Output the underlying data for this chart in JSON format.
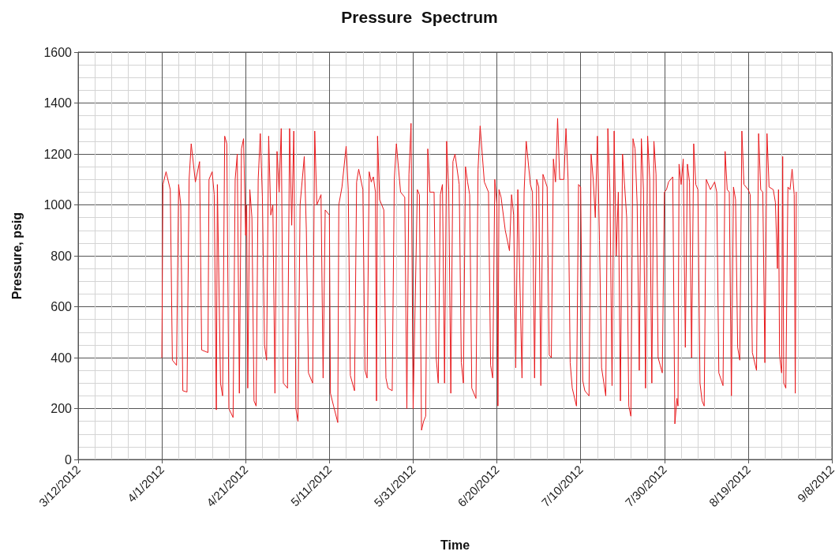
{
  "chart_data": {
    "type": "line",
    "title": "Pressure  Spectrum",
    "xlabel": "Time",
    "ylabel": "Pressure, psig",
    "xlim": [
      "2012-03-12",
      "2012-09-08"
    ],
    "xticks": [
      {
        "value": "2012-03-12",
        "label": "3/12/2012"
      },
      {
        "value": "2012-04-01",
        "label": "4/1/2012"
      },
      {
        "value": "2012-04-21",
        "label": "4/21/2012"
      },
      {
        "value": "2012-05-11",
        "label": "5/11/2012"
      },
      {
        "value": "2012-05-31",
        "label": "5/31/2012"
      },
      {
        "value": "2012-06-20",
        "label": "6/20/2012"
      },
      {
        "value": "2012-07-10",
        "label": "7/10/2012"
      },
      {
        "value": "2012-07-30",
        "label": "7/30/2012"
      },
      {
        "value": "2012-08-19",
        "label": "8/19/2012"
      },
      {
        "value": "2012-09-08",
        "label": "9/8/2012"
      }
    ],
    "ylim": [
      0,
      1600
    ],
    "yticks": [
      0,
      200,
      400,
      600,
      800,
      1000,
      1200,
      1400,
      1600
    ],
    "grid": true,
    "marker": "none",
    "line_style": "solid",
    "series": [
      {
        "color": "#e8191c",
        "x": [
          "2012-04-01T00:00",
          "2012-04-01T06:00",
          "2012-04-02",
          "2012-04-03",
          "2012-04-03T12:00",
          "2012-04-04T12:00",
          "2012-04-05",
          "2012-04-05T12:00",
          "2012-04-06",
          "2012-04-07",
          "2012-04-07T12:00",
          "2012-04-08",
          "2012-04-09",
          "2012-04-10",
          "2012-04-10T12:00",
          "2012-04-12",
          "2012-04-12T06:00",
          "2012-04-13",
          "2012-04-13T12:00",
          "2012-04-14",
          "2012-04-14T06:00",
          "2012-04-15",
          "2012-04-15T12:00",
          "2012-04-16",
          "2012-04-16T12:00",
          "2012-04-17",
          "2012-04-18",
          "2012-04-18T12:00",
          "2012-04-19",
          "2012-04-19T12:00",
          "2012-04-20",
          "2012-04-20T12:00",
          "2012-04-21",
          "2012-04-21T06:00",
          "2012-04-21T12:00",
          "2012-04-22",
          "2012-04-22T12:00",
          "2012-04-23",
          "2012-04-23T12:00",
          "2012-04-24",
          "2012-04-24T12:00",
          "2012-04-25",
          "2012-04-25T12:00",
          "2012-04-26",
          "2012-04-26T12:00",
          "2012-04-27",
          "2012-04-27T12:00",
          "2012-04-28",
          "2012-04-28T12:00",
          "2012-04-29",
          "2012-04-29T12:00",
          "2012-04-30",
          "2012-05-01",
          "2012-05-01T12:00",
          "2012-05-02",
          "2012-05-02T12:00",
          "2012-05-03",
          "2012-05-03T12:00",
          "2012-05-04",
          "2012-05-05",
          "2012-05-05T12:00",
          "2012-05-06",
          "2012-05-07",
          "2012-05-07T12:00",
          "2012-05-08",
          "2012-05-09",
          "2012-05-09T12:00",
          "2012-05-10",
          "2012-05-11",
          "2012-05-11T06:00",
          "2012-05-12",
          "2012-05-13",
          "2012-05-13T06:00",
          "2012-05-14",
          "2012-05-15",
          "2012-05-15T12:00",
          "2012-05-16",
          "2012-05-17",
          "2012-05-17T12:00",
          "2012-05-18",
          "2012-05-19",
          "2012-05-19T12:00",
          "2012-05-20",
          "2012-05-20T12:00",
          "2012-05-21",
          "2012-05-21T12:00",
          "2012-05-22",
          "2012-05-22T06:00",
          "2012-05-22T12:00",
          "2012-05-23",
          "2012-05-24",
          "2012-05-24T12:00",
          "2012-05-25",
          "2012-05-26",
          "2012-05-26T12:00",
          "2012-05-27",
          "2012-05-28",
          "2012-05-29",
          "2012-05-29T12:00",
          "2012-05-30",
          "2012-05-30T12:00",
          "2012-05-31",
          "2012-06-01",
          "2012-06-01T12:00",
          "2012-06-02",
          "2012-06-02T12:00",
          "2012-06-03",
          "2012-06-03T12:00",
          "2012-06-04",
          "2012-06-05",
          "2012-06-05T12:00",
          "2012-06-06",
          "2012-06-06T12:00",
          "2012-06-07",
          "2012-06-07T12:00",
          "2012-06-08",
          "2012-06-08T12:00",
          "2012-06-09",
          "2012-06-09T12:00",
          "2012-06-10",
          "2012-06-11",
          "2012-06-11T12:00",
          "2012-06-12",
          "2012-06-12T12:00",
          "2012-06-13",
          "2012-06-13T12:00",
          "2012-06-14",
          "2012-06-15",
          "2012-06-15T12:00",
          "2012-06-16",
          "2012-06-17",
          "2012-06-18",
          "2012-06-18T12:00",
          "2012-06-19",
          "2012-06-19T12:00",
          "2012-06-20",
          "2012-06-20T06:00",
          "2012-06-20T12:00",
          "2012-06-21",
          "2012-06-22",
          "2012-06-23",
          "2012-06-23T12:00",
          "2012-06-24",
          "2012-06-24T12:00",
          "2012-06-25",
          "2012-06-26",
          "2012-06-26T12:00",
          "2012-06-27",
          "2012-06-28",
          "2012-06-28T12:00",
          "2012-06-29",
          "2012-06-29T12:00",
          "2012-06-30",
          "2012-06-30T12:00",
          "2012-07-01",
          "2012-07-02",
          "2012-07-02T12:00",
          "2012-07-03",
          "2012-07-03T12:00",
          "2012-07-04",
          "2012-07-04T12:00",
          "2012-07-05",
          "2012-07-06",
          "2012-07-06T12:00",
          "2012-07-07",
          "2012-07-07T12:00",
          "2012-07-08",
          "2012-07-09",
          "2012-07-09T12:00",
          "2012-07-10",
          "2012-07-10T12:00",
          "2012-07-11",
          "2012-07-12",
          "2012-07-12T12:00",
          "2012-07-13",
          "2012-07-13T12:00",
          "2012-07-14",
          "2012-07-14T12:00",
          "2012-07-15",
          "2012-07-16",
          "2012-07-16T12:00",
          "2012-07-17",
          "2012-07-17T12:00",
          "2012-07-18",
          "2012-07-18T12:00",
          "2012-07-19",
          "2012-07-19T12:00",
          "2012-07-20",
          "2012-07-21",
          "2012-07-21T12:00",
          "2012-07-22",
          "2012-07-22T12:00",
          "2012-07-23",
          "2012-07-23T12:00",
          "2012-07-24",
          "2012-07-24T12:00",
          "2012-07-25",
          "2012-07-25T12:00",
          "2012-07-26",
          "2012-07-26T12:00",
          "2012-07-27",
          "2012-07-27T12:00",
          "2012-07-28",
          "2012-07-28T12:00",
          "2012-07-29",
          "2012-07-29T12:00",
          "2012-07-30",
          "2012-07-30T12:00",
          "2012-07-31",
          "2012-08-01",
          "2012-08-01T12:00",
          "2012-08-02",
          "2012-08-02T06:00",
          "2012-08-02T12:00",
          "2012-08-03",
          "2012-08-03T12:00",
          "2012-08-04",
          "2012-08-04T12:00",
          "2012-08-05",
          "2012-08-05T12:00",
          "2012-08-06",
          "2012-08-06T12:00",
          "2012-08-07",
          "2012-08-07T12:00",
          "2012-08-08",
          "2012-08-08T12:00",
          "2012-08-09",
          "2012-08-10",
          "2012-08-11",
          "2012-08-11T12:00",
          "2012-08-12",
          "2012-08-13",
          "2012-08-13T12:00",
          "2012-08-14",
          "2012-08-14T12:00",
          "2012-08-15",
          "2012-08-15T12:00",
          "2012-08-16",
          "2012-08-16T12:00",
          "2012-08-17",
          "2012-08-17T12:00",
          "2012-08-18",
          "2012-08-19",
          "2012-08-19T12:00",
          "2012-08-20",
          "2012-08-21",
          "2012-08-21T12:00",
          "2012-08-22",
          "2012-08-22T12:00",
          "2012-08-23",
          "2012-08-23T12:00",
          "2012-08-24",
          "2012-08-25",
          "2012-08-25T12:00",
          "2012-08-26",
          "2012-08-26T06:00",
          "2012-08-26T12:00",
          "2012-08-27",
          "2012-08-27T06:00",
          "2012-08-27T12:00",
          "2012-08-28",
          "2012-08-28T12:00",
          "2012-08-29",
          "2012-08-29T12:00",
          "2012-08-30",
          "2012-08-30T06:00",
          "2012-08-30T12:00"
        ],
        "values": [
          400,
          1080,
          1130,
          1060,
          390,
          370,
          1080,
          1000,
          270,
          265,
          1100,
          1240,
          1090,
          1170,
          430,
          420,
          1100,
          1130,
          1040,
          195,
          1080,
          300,
          250,
          1270,
          1240,
          200,
          165,
          1100,
          1200,
          260,
          1220,
          1260,
          880,
          1000,
          280,
          1060,
          950,
          230,
          210,
          1100,
          1280,
          1030,
          450,
          390,
          1270,
          960,
          1000,
          260,
          1210,
          1050,
          1300,
          300,
          280,
          1300,
          920,
          1290,
          200,
          150,
          1000,
          1190,
          900,
          340,
          300,
          1290,
          1000,
          1040,
          320,
          980,
          960,
          260,
          210,
          145,
          1000,
          1070,
          1230,
          1060,
          330,
          270,
          1090,
          1140,
          1060,
          350,
          320,
          1130,
          1090,
          1110,
          1050,
          230,
          1270,
          1020,
          980,
          320,
          280,
          270,
          1100,
          1240,
          1050,
          1030,
          200,
          1120,
          1320,
          200,
          1060,
          1040,
          115,
          150,
          170,
          1220,
          1050,
          1050,
          400,
          300,
          1040,
          1080,
          300,
          1250,
          1060,
          260,
          1170,
          1200,
          1080,
          380,
          300,
          1150,
          1090,
          1040,
          280,
          240,
          1140,
          1310,
          1090,
          1050,
          370,
          320,
          1100,
          1000,
          210,
          1060,
          1030,
          900,
          820,
          1040,
          960,
          360,
          1060,
          320,
          1050,
          1250,
          1080,
          1050,
          320,
          1100,
          1070,
          290,
          1120,
          1070,
          410,
          400,
          1180,
          1090,
          1340,
          1100,
          1100,
          1300,
          1100,
          380,
          280,
          210,
          1080,
          1070,
          310,
          270,
          250,
          1200,
          1100,
          950,
          1270,
          860,
          360,
          250,
          1300,
          1050,
          290,
          1290,
          800,
          1050,
          230,
          1200,
          950,
          210,
          170,
          1260,
          1220,
          1000,
          350,
          1260,
          1060,
          280,
          1270,
          1100,
          300,
          1250,
          1120,
          400,
          370,
          340,
          1050,
          1060,
          1090,
          1110,
          140,
          240,
          210,
          1160,
          1080,
          1180,
          440,
          1160,
          1090,
          400,
          1240,
          1080,
          1060,
          300,
          230,
          210,
          1100,
          1060,
          1090,
          1050,
          340,
          290,
          1210,
          1060,
          1050,
          250,
          1070,
          1020,
          440,
          390,
          1290,
          1080,
          1060,
          1040,
          420,
          350,
          1280,
          1060,
          1050,
          380,
          1280,
          1070,
          1060,
          1010,
          750,
          1060,
          410,
          340,
          1190,
          300,
          280,
          1070,
          1060,
          1140,
          1040,
          260,
          1050
        ]
      }
    ]
  }
}
